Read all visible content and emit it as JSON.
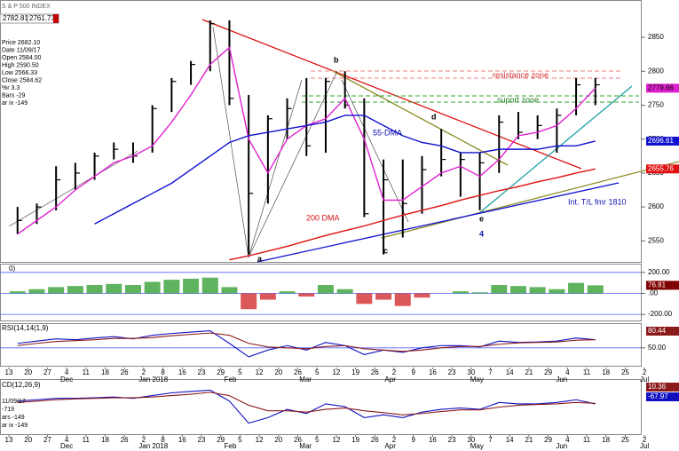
{
  "chart_data": [
    {
      "type": "ohlc",
      "title": "S & P 500 INDEX",
      "header_values": [
        "2782.81",
        "2761.73"
      ],
      "info": [
        "Price 2682.10",
        "Date 11/09/17",
        "Open 2584.00",
        "High 2590.50",
        "Low 2566.33",
        "Close 2584.62",
        "%r 3.3",
        "Bars -29",
        "ar ix -149"
      ],
      "x": [
        0,
        1,
        2,
        3,
        4,
        5,
        6,
        7,
        8,
        9,
        10,
        11,
        12,
        13,
        14,
        15,
        16,
        17,
        18,
        19,
        20,
        21,
        22,
        23,
        24,
        25,
        26,
        27,
        28,
        29,
        30
      ],
      "high": [
        2600,
        2605,
        2660,
        2665,
        2680,
        2695,
        2695,
        2750,
        2790,
        2815,
        2875,
        2875,
        2765,
        2735,
        2760,
        2790,
        2790,
        2800,
        2760,
        2670,
        2670,
        2675,
        2715,
        2680,
        2680,
        2735,
        2740,
        2735,
        2745,
        2790,
        2790
      ],
      "low": [
        2560,
        2575,
        2595,
        2625,
        2640,
        2670,
        2665,
        2680,
        2740,
        2780,
        2800,
        2750,
        2530,
        2605,
        2700,
        2675,
        2680,
        2745,
        2585,
        2530,
        2555,
        2590,
        2645,
        2615,
        2595,
        2650,
        2700,
        2700,
        2680,
        2735,
        2750
      ],
      "close": [
        2580,
        2600,
        2640,
        2650,
        2675,
        2685,
        2675,
        2745,
        2785,
        2810,
        2870,
        2760,
        2620,
        2730,
        2745,
        2690,
        2785,
        2750,
        2590,
        2640,
        2605,
        2655,
        2670,
        2670,
        2665,
        2725,
        2710,
        2720,
        2735,
        2780,
        2780
      ],
      "color": "#000000",
      "series": [
        {
          "name": "2779.66",
          "color": "#e020d0",
          "values": [
            2560,
            2580,
            2600,
            2625,
            2645,
            2665,
            2675,
            2690,
            2725,
            2765,
            2810,
            2835,
            2700,
            2650,
            2700,
            2720,
            2730,
            2760,
            2700,
            2610,
            2610,
            2630,
            2650,
            2660,
            2645,
            2670,
            2705,
            2710,
            2720,
            2745,
            2775
          ]
        },
        {
          "name": "2696.61",
          "color": "#1010d0",
          "values": [
            null,
            null,
            null,
            null,
            2575,
            2590,
            2605,
            2620,
            2635,
            2655,
            2675,
            2695,
            2705,
            2710,
            2715,
            2720,
            2725,
            2735,
            2735,
            2720,
            2705,
            2695,
            2690,
            2680,
            2680,
            2685,
            2685,
            2685,
            2690,
            2690,
            2697
          ]
        },
        {
          "name": "2655.76",
          "color": "#e01010",
          "values": [
            null,
            null,
            null,
            null,
            null,
            null,
            null,
            null,
            null,
            null,
            null,
            2522,
            2528,
            2535,
            2542,
            2550,
            2558,
            2565,
            2572,
            2580,
            2588,
            2595,
            2602,
            2610,
            2617,
            2624,
            2630,
            2637,
            2643,
            2650,
            2656
          ]
        }
      ],
      "annotations": [
        "resistance zone",
        "suport zone",
        "55-DMA",
        "200 DMA",
        "Int. T/L fmr 1810",
        "a",
        "b",
        "c",
        "d",
        "e",
        "4"
      ],
      "xlim": [
        0,
        33
      ],
      "xticks": [
        {
          "value": 0,
          "label": "13"
        },
        {
          "value": 1,
          "label": "20"
        },
        {
          "value": 2,
          "label": "27"
        },
        {
          "value": 3,
          "label": "4"
        },
        {
          "value": 4,
          "label": "11"
        },
        {
          "value": 5,
          "label": "18"
        },
        {
          "value": 6,
          "label": "26"
        },
        {
          "value": 7,
          "label": "2"
        },
        {
          "value": 8,
          "label": "8"
        },
        {
          "value": 9,
          "label": "16"
        },
        {
          "value": 10,
          "label": "23"
        },
        {
          "value": 11,
          "label": "29"
        },
        {
          "value": 12,
          "label": "5"
        },
        {
          "value": 13,
          "label": "12"
        },
        {
          "value": 14,
          "label": "20"
        },
        {
          "value": 15,
          "label": "26"
        },
        {
          "value": 16,
          "label": "5"
        },
        {
          "value": 17,
          "label": "12"
        },
        {
          "value": 18,
          "label": "19"
        },
        {
          "value": 19,
          "label": "26"
        },
        {
          "value": 20,
          "label": "2"
        },
        {
          "value": 21,
          "label": "9"
        },
        {
          "value": 22,
          "label": "16"
        },
        {
          "value": 23,
          "label": "23"
        },
        {
          "value": 24,
          "label": "30"
        },
        {
          "value": 25,
          "label": "7"
        },
        {
          "value": 26,
          "label": "14"
        },
        {
          "value": 27,
          "label": "21"
        },
        {
          "value": 28,
          "label": "29"
        },
        {
          "value": 29,
          "label": "4"
        },
        {
          "value": 30,
          "label": "11"
        },
        {
          "value": 31,
          "label": "18"
        },
        {
          "value": 32,
          "label": "25"
        },
        {
          "value": 33,
          "label": "2"
        }
      ],
      "months": [
        {
          "value": 3,
          "label": "Dec"
        },
        {
          "value": 7.5,
          "label": "Jan 2018"
        },
        {
          "value": 11.5,
          "label": "Feb"
        },
        {
          "value": 15.4,
          "label": "Mar"
        },
        {
          "value": 19.8,
          "label": "Apr"
        },
        {
          "value": 24.3,
          "label": "May"
        },
        {
          "value": 28.7,
          "label": "Jun"
        },
        {
          "value": 33,
          "label": "Jul"
        }
      ],
      "ylim": [
        2519,
        2905
      ],
      "yticks": [
        2550,
        2600,
        2650,
        2700,
        2750,
        2800,
        2850
      ]
    },
    {
      "type": "bar",
      "title": "0)",
      "last_label": "76.81",
      "values": [
        20,
        40,
        60,
        70,
        80,
        90,
        80,
        110,
        130,
        140,
        150,
        60,
        -150,
        -60,
        20,
        -30,
        80,
        40,
        -100,
        -60,
        -120,
        -40,
        0,
        20,
        10,
        80,
        70,
        60,
        40,
        100,
        77
      ],
      "color": "#2a9a2a",
      "negative_color": "#d02020",
      "ylim": [
        -258,
        283
      ],
      "yticks": [
        {
          "value": 200,
          "label": "200.00"
        },
        {
          "value": 0,
          "label": ".00"
        },
        {
          "value": -200,
          "label": "-200.00"
        }
      ]
    },
    {
      "type": "line",
      "title": "RSI(14,14(1,9)",
      "last_labels": [
        "80.44"
      ],
      "series": [
        {
          "name": "RSI",
          "color": "#1010c0",
          "values": [
            60,
            65,
            70,
            68,
            72,
            75,
            70,
            78,
            82,
            85,
            88,
            60,
            30,
            45,
            55,
            45,
            62,
            55,
            35,
            45,
            40,
            50,
            55,
            55,
            52,
            65,
            62,
            63,
            65,
            72,
            68
          ]
        },
        {
          "name": "Signal",
          "color": "#8b1a1a",
          "values": [
            55,
            60,
            64,
            66,
            68,
            71,
            71,
            73,
            77,
            80,
            83,
            78,
            60,
            52,
            50,
            48,
            53,
            55,
            48,
            45,
            42,
            45,
            50,
            53,
            53,
            58,
            61,
            62,
            63,
            67,
            68
          ]
        }
      ],
      "ylim": [
        10,
        105
      ],
      "yticks": [
        {
          "value": 50,
          "label": "50.00"
        }
      ]
    },
    {
      "type": "line",
      "title": "CD(12,26,9)",
      "last_labels": [
        "10.36",
        "-67.97"
      ],
      "info": [
        "11/09/17",
        "-719",
        "ars -149",
        "ar ix -149"
      ],
      "series": [
        {
          "name": "MACD",
          "color": "#1010c0",
          "values": [
            20,
            25,
            30,
            30,
            32,
            35,
            30,
            40,
            50,
            55,
            60,
            20,
            -60,
            -40,
            -10,
            -25,
            10,
            0,
            -40,
            -30,
            -40,
            -20,
            -10,
            -5,
            -10,
            15,
            10,
            10,
            15,
            25,
            10
          ]
        },
        {
          "name": "Signal",
          "color": "#8b1a1a",
          "values": [
            15,
            20,
            25,
            28,
            30,
            32,
            32,
            35,
            40,
            45,
            52,
            40,
            5,
            -15,
            -15,
            -20,
            -10,
            -5,
            -15,
            -22,
            -30,
            -25,
            -18,
            -12,
            -12,
            -2,
            5,
            8,
            10,
            15,
            12
          ]
        }
      ],
      "ylim": [
        -100,
        100
      ],
      "yticks": []
    }
  ]
}
